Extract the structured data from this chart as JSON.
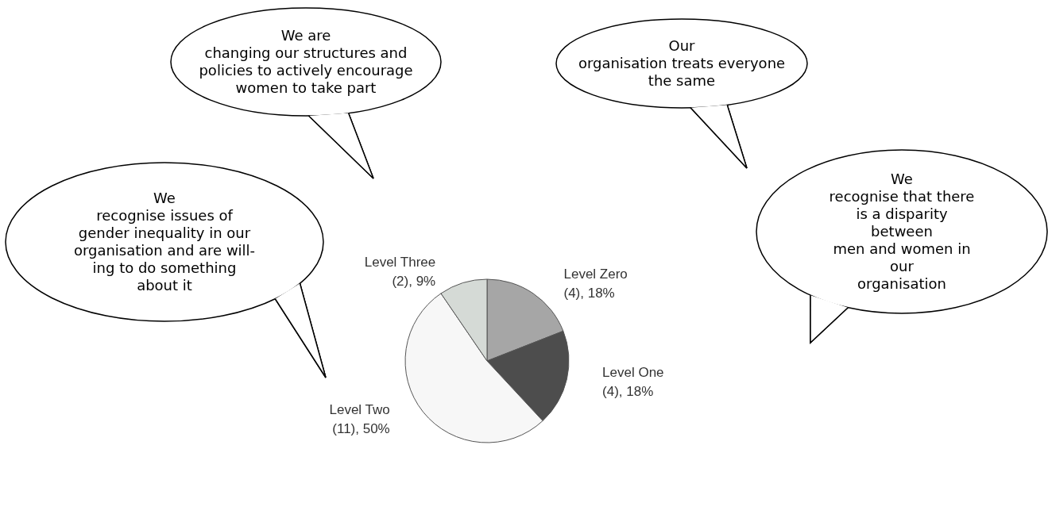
{
  "chart_data": {
    "type": "pie",
    "categories": [
      "Level Zero",
      "Level One",
      "Level Two",
      "Level Three"
    ],
    "values": [
      4,
      4,
      11,
      2
    ],
    "value_labels": [
      "(4), 18%",
      "(4), 18%",
      "(11), 50%",
      "(2), 9%"
    ],
    "colors": [
      "#a6a6a6",
      "#4d4d4d",
      "#f7f7f7",
      "#d5dad6"
    ],
    "legend": false,
    "annotations": [
      "We are\nchanging our structures and\npolicies to actively encourage\nwomen to take part",
      "Our\norganisation treats everyone\nthe same",
      "We\nrecognise issues of\ngender inequality in our\norganisation and are will-\ning to do something\nabout it",
      "We\nrecognise that there\nis a disparity between\nmen and women in our\norganisation"
    ]
  }
}
